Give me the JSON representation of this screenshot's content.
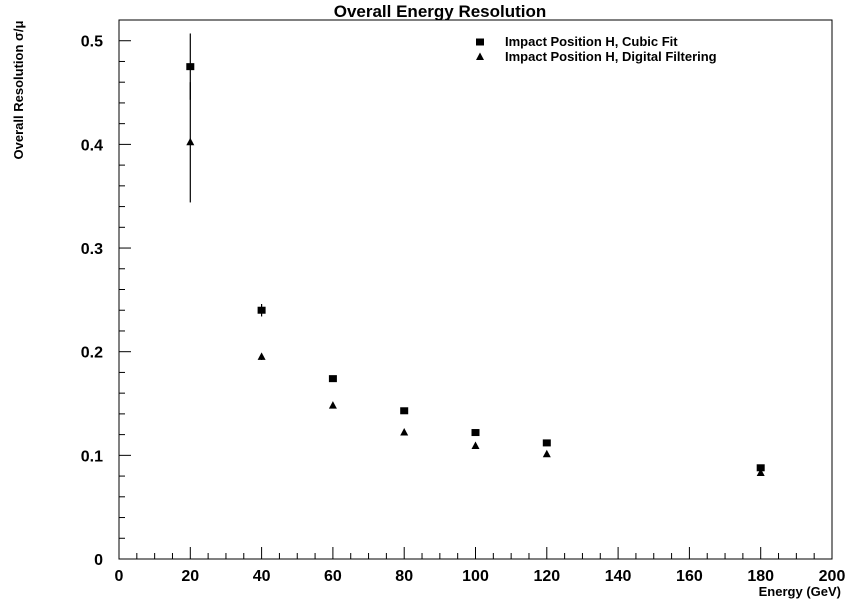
{
  "chart_data": {
    "type": "scatter",
    "title": "Overall Energy Resolution",
    "xlabel": "Energy (GeV)",
    "ylabel": "Overall Resolution σ/μ",
    "xlim": [
      0,
      200
    ],
    "ylim": [
      0,
      0.52
    ],
    "x_ticks": [
      0,
      20,
      40,
      60,
      80,
      100,
      120,
      140,
      160,
      180,
      200
    ],
    "y_ticks": [
      0,
      0.1,
      0.2,
      0.3,
      0.4,
      0.5
    ],
    "y_tick_labels": [
      "0",
      "0.1",
      "0.2",
      "0.3",
      "0.4",
      "0.5"
    ],
    "grid": false,
    "legend_position": "top-right",
    "series": [
      {
        "name": "Impact Position H, Cubic Fit",
        "marker": "square",
        "color": "#000000",
        "points": [
          {
            "x": 20,
            "y": 0.475,
            "err": 0.032
          },
          {
            "x": 40,
            "y": 0.24,
            "err": 0.006
          },
          {
            "x": 60,
            "y": 0.174,
            "err": 0.002
          },
          {
            "x": 80,
            "y": 0.143,
            "err": 0.002
          },
          {
            "x": 100,
            "y": 0.122,
            "err": 0.002
          },
          {
            "x": 120,
            "y": 0.112,
            "err": 0.002
          },
          {
            "x": 180,
            "y": 0.088,
            "err": 0.002
          }
        ]
      },
      {
        "name": "Impact Position H, Digital Filtering",
        "marker": "triangle",
        "color": "#000000",
        "points": [
          {
            "x": 20,
            "y": 0.402,
            "err": 0.058
          },
          {
            "x": 40,
            "y": 0.195,
            "err": 0.003
          },
          {
            "x": 60,
            "y": 0.148,
            "err": 0.002
          },
          {
            "x": 80,
            "y": 0.122,
            "err": 0.002
          },
          {
            "x": 100,
            "y": 0.109,
            "err": 0.002
          },
          {
            "x": 120,
            "y": 0.101,
            "err": 0.002
          },
          {
            "x": 180,
            "y": 0.083,
            "err": 0.002
          }
        ]
      }
    ]
  }
}
